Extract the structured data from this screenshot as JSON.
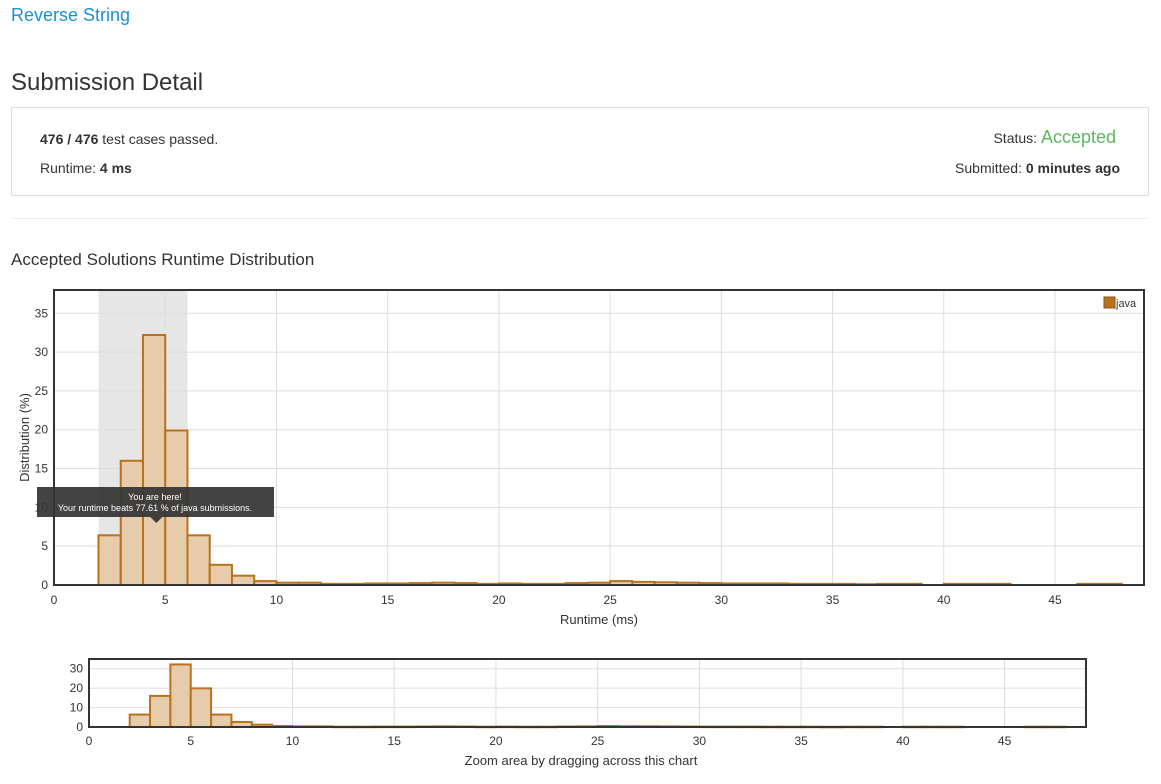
{
  "problem": {
    "title": "Reverse String"
  },
  "page_title": "Submission Detail",
  "detail": {
    "passed": "476",
    "total": "476",
    "separator": " / ",
    "test_cases_suffix": " test cases passed.",
    "runtime_label": "Runtime: ",
    "runtime_value": "4 ms",
    "status_label": "Status: ",
    "status_value": "Accepted",
    "submitted_label": "Submitted: ",
    "submitted_value": "0 minutes ago"
  },
  "section_title": "Accepted Solutions Runtime Distribution",
  "colors": {
    "accent": "#1a8fd6",
    "accepted": "#5cb85c",
    "bar_fill": "#e6ccab",
    "bar_stroke": "#b8721d",
    "highlight": "#e6e6e6",
    "tooltip_bg": "#333333"
  },
  "tooltip": {
    "line1": "You are here!",
    "line2": "Your runtime beats 77.61 % of java submissions."
  },
  "zoom_hint": "Zoom area by dragging across this chart",
  "chart_data": [
    {
      "type": "bar",
      "xlabel": "Runtime (ms)",
      "ylabel": "Distribution (%)",
      "xlim": [
        0,
        49
      ],
      "ylim": [
        0,
        38
      ],
      "xticks": [
        0,
        5,
        10,
        15,
        20,
        25,
        30,
        35,
        40,
        45
      ],
      "yticks": [
        0,
        5,
        10,
        15,
        20,
        25,
        30,
        35
      ],
      "grid": true,
      "legend": "top-right",
      "highlight_range": [
        2,
        6
      ],
      "series": [
        {
          "name": "java",
          "bins": [
            [
              2,
              3,
              6.4
            ],
            [
              3,
              4,
              16
            ],
            [
              4,
              5,
              32.2
            ],
            [
              5,
              6,
              19.9
            ],
            [
              6,
              7,
              6.4
            ],
            [
              7,
              8,
              2.6
            ],
            [
              8,
              9,
              1.2
            ],
            [
              9,
              10,
              0.5
            ],
            [
              10,
              11,
              0.3
            ],
            [
              11,
              12,
              0.3
            ],
            [
              12,
              13,
              0.15
            ],
            [
              13,
              14,
              0.15
            ],
            [
              14,
              15,
              0.2
            ],
            [
              15,
              16,
              0.2
            ],
            [
              16,
              17,
              0.25
            ],
            [
              17,
              18,
              0.3
            ],
            [
              18,
              19,
              0.25
            ],
            [
              19,
              20,
              0.15
            ],
            [
              20,
              21,
              0.2
            ],
            [
              21,
              22,
              0.15
            ],
            [
              22,
              23,
              0.15
            ],
            [
              23,
              24,
              0.25
            ],
            [
              24,
              25,
              0.3
            ],
            [
              25,
              26,
              0.5
            ],
            [
              26,
              27,
              0.4
            ],
            [
              27,
              28,
              0.35
            ],
            [
              28,
              29,
              0.3
            ],
            [
              29,
              30,
              0.25
            ],
            [
              30,
              31,
              0.2
            ],
            [
              31,
              32,
              0.2
            ],
            [
              32,
              33,
              0.2
            ],
            [
              33,
              34,
              0.15
            ],
            [
              34,
              35,
              0.15
            ],
            [
              35,
              36,
              0.15
            ],
            [
              36,
              37,
              0.1
            ],
            [
              37,
              38,
              0.15
            ],
            [
              38,
              39,
              0.15
            ],
            [
              40,
              41,
              0.15
            ],
            [
              41,
              42,
              0.15
            ],
            [
              42,
              43,
              0.15
            ],
            [
              46,
              47,
              0.15
            ],
            [
              47,
              48,
              0.15
            ]
          ]
        }
      ]
    },
    {
      "type": "bar",
      "xlim": [
        0,
        49
      ],
      "ylim": [
        0,
        35
      ],
      "xticks": [
        0,
        5,
        10,
        15,
        20,
        25,
        30,
        35,
        40,
        45
      ],
      "yticks": [
        0,
        10,
        20,
        30
      ],
      "grid": true,
      "series": [
        {
          "name": "java",
          "bins": [
            [
              2,
              3,
              6.4
            ],
            [
              3,
              4,
              16
            ],
            [
              4,
              5,
              32.2
            ],
            [
              5,
              6,
              19.9
            ],
            [
              6,
              7,
              6.4
            ],
            [
              7,
              8,
              2.6
            ],
            [
              8,
              9,
              1.2
            ],
            [
              9,
              10,
              0.5
            ],
            [
              10,
              11,
              0.3
            ],
            [
              11,
              12,
              0.3
            ],
            [
              12,
              13,
              0.15
            ],
            [
              13,
              14,
              0.15
            ],
            [
              14,
              15,
              0.2
            ],
            [
              15,
              16,
              0.2
            ],
            [
              16,
              17,
              0.25
            ],
            [
              17,
              18,
              0.3
            ],
            [
              18,
              19,
              0.25
            ],
            [
              19,
              20,
              0.15
            ],
            [
              20,
              21,
              0.2
            ],
            [
              21,
              22,
              0.15
            ],
            [
              22,
              23,
              0.15
            ],
            [
              23,
              24,
              0.25
            ],
            [
              24,
              25,
              0.3
            ],
            [
              25,
              26,
              0.5
            ],
            [
              26,
              27,
              0.4
            ],
            [
              27,
              28,
              0.35
            ],
            [
              28,
              29,
              0.3
            ],
            [
              29,
              30,
              0.25
            ],
            [
              30,
              31,
              0.2
            ],
            [
              31,
              32,
              0.2
            ],
            [
              32,
              33,
              0.2
            ],
            [
              33,
              34,
              0.15
            ],
            [
              34,
              35,
              0.15
            ],
            [
              35,
              36,
              0.15
            ],
            [
              36,
              37,
              0.1
            ],
            [
              37,
              38,
              0.15
            ],
            [
              38,
              39,
              0.15
            ],
            [
              40,
              41,
              0.15
            ],
            [
              41,
              42,
              0.15
            ],
            [
              42,
              43,
              0.15
            ],
            [
              46,
              47,
              0.15
            ],
            [
              47,
              48,
              0.15
            ]
          ]
        }
      ]
    }
  ]
}
